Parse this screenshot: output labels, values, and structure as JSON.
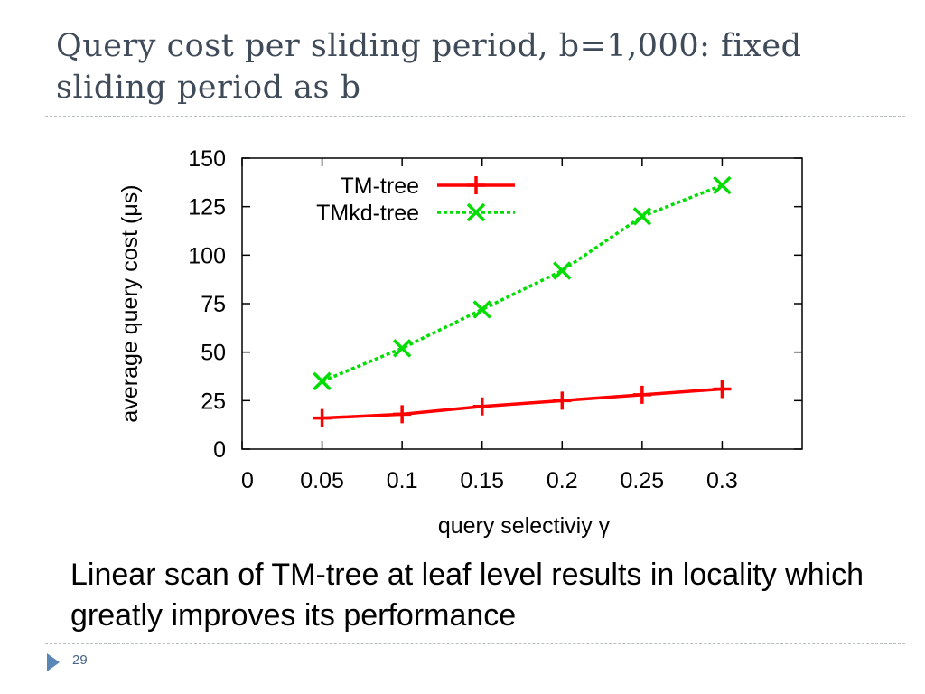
{
  "slide": {
    "title": "Query cost per sliding period, b=1,000: fixed sliding period as b",
    "caption": "Linear scan of TM-tree at leaf level results in locality which greatly improves its performance",
    "page_number": "29"
  },
  "chart_data": {
    "type": "line",
    "title": "",
    "xlabel": "query selectiviy γ",
    "ylabel": "average query cost (μs)",
    "x_ticks": [
      "0",
      "0.05",
      "0.1",
      "0.15",
      "0.2",
      "0.25",
      "0.3"
    ],
    "y_ticks": [
      "0",
      "25",
      "50",
      "75",
      "100",
      "125",
      "150"
    ],
    "xlim": [
      0,
      0.35
    ],
    "ylim": [
      0,
      150
    ],
    "legend_position": "top-left",
    "series": [
      {
        "name": "TM-tree",
        "color": "#ff0000",
        "marker": "plus",
        "dash": "solid",
        "x": [
          0.05,
          0.1,
          0.15,
          0.2,
          0.25,
          0.3
        ],
        "y": [
          16,
          18,
          22,
          25,
          28,
          31
        ]
      },
      {
        "name": "TMkd-tree",
        "color": "#00dd00",
        "marker": "cross",
        "dash": "dotted",
        "x": [
          0.05,
          0.1,
          0.15,
          0.2,
          0.25,
          0.3
        ],
        "y": [
          35,
          52,
          72,
          92,
          120,
          136
        ]
      }
    ]
  }
}
